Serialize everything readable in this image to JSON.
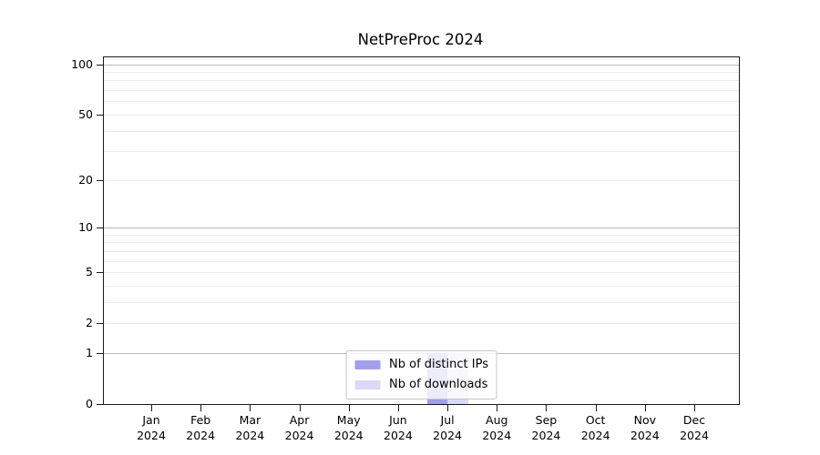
{
  "chart_data": {
    "type": "bar",
    "title": "NetPreProc 2024",
    "categories": [
      "Jan 2024",
      "Feb 2024",
      "Mar 2024",
      "Apr 2024",
      "May 2024",
      "Jun 2024",
      "Jul 2024",
      "Aug 2024",
      "Sep 2024",
      "Oct 2024",
      "Nov 2024",
      "Dec 2024"
    ],
    "x_tick_months": [
      "Jan",
      "Feb",
      "Mar",
      "Apr",
      "May",
      "Jun",
      "Jul",
      "Aug",
      "Sep",
      "Oct",
      "Nov",
      "Dec"
    ],
    "x_tick_year": "2024",
    "series": [
      {
        "name": "Nb of distinct IPs",
        "color": "#9f9fee",
        "values": [
          0,
          0,
          0,
          0,
          0,
          0,
          1,
          0,
          0,
          0,
          0,
          0
        ]
      },
      {
        "name": "Nb of downloads",
        "color": "#d9d9f8",
        "values": [
          0,
          0,
          0,
          0,
          0,
          0,
          1,
          0,
          0,
          0,
          0,
          0
        ]
      }
    ],
    "yscale": "symlog",
    "ylim": [
      0,
      110
    ],
    "yticks_labeled": [
      0,
      1,
      2,
      5,
      10,
      20,
      50,
      100
    ],
    "grid_major": [
      1,
      10,
      100
    ],
    "grid_minor": [
      2,
      3,
      4,
      5,
      6,
      7,
      8,
      9,
      20,
      30,
      40,
      50,
      60,
      70,
      80,
      90
    ],
    "grid": "horizontal only",
    "legend": {
      "position": "lower center",
      "entries": [
        "Nb of distinct IPs",
        "Nb of downloads"
      ]
    },
    "colors": {
      "axis": "#1a1a1a",
      "text": "#000000",
      "grid_major": "#bbbbbb",
      "grid_minor": "#ebebeb",
      "legend_border": "#c7c7c7",
      "bar_distinct_ips": "#9f9fee",
      "bar_downloads": "#d9d9f8"
    }
  }
}
